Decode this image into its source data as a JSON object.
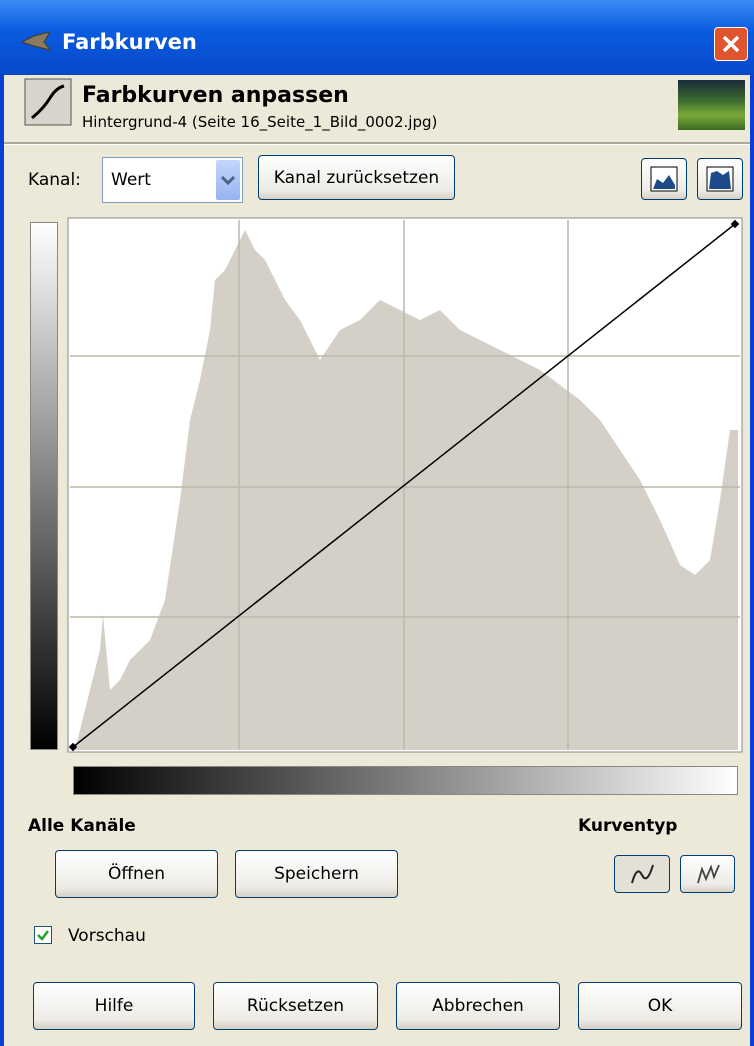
{
  "window": {
    "title": "Farbkurven"
  },
  "header": {
    "title": "Farbkurven anpassen",
    "subtitle": "Hintergrund-4 (Seite 16_Seite_1_Bild_0002.jpg)"
  },
  "channel": {
    "label": "Kanal:",
    "value": "Wert",
    "reset": "Kanal zurücksetzen"
  },
  "sections": {
    "all_channels": "Alle Kanäle",
    "curve_type": "Kurventyp"
  },
  "file_buttons": {
    "open": "Öffnen",
    "save": "Speichern"
  },
  "preview": {
    "label": "Vorschau",
    "checked": true
  },
  "footer_buttons": {
    "help": "Hilfe",
    "reset": "Rücksetzen",
    "cancel": "Abbrechen",
    "ok": "OK"
  }
}
